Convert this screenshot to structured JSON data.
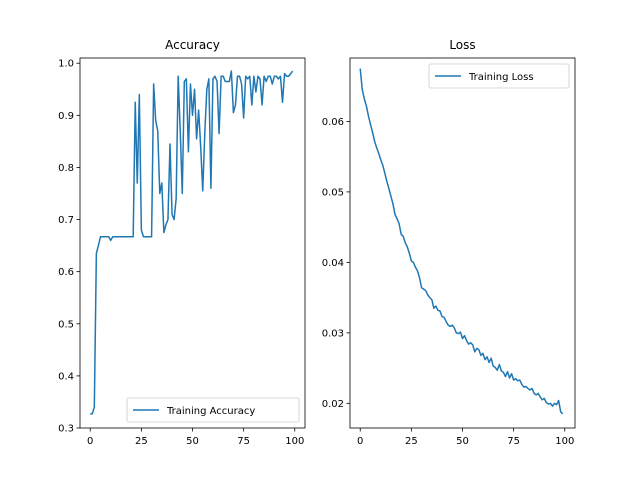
{
  "chart_data": [
    {
      "type": "line",
      "title": "Accuracy",
      "xlabel": "",
      "ylabel": "",
      "xlim": [
        -5,
        105
      ],
      "ylim": [
        0.3,
        1.01
      ],
      "xticks": [
        0,
        25,
        50,
        75,
        100
      ],
      "yticks": [
        0.3,
        0.4,
        0.5,
        0.6,
        0.7,
        0.8,
        0.9,
        1.0
      ],
      "ytick_labels": [
        "0.3",
        "0.4",
        "0.5",
        "0.6",
        "0.7",
        "0.8",
        "0.9",
        "1.0"
      ],
      "legend_position": "bottom-right",
      "grid": false,
      "series": [
        {
          "name": "Training Accuracy",
          "color": "#1f77b4",
          "x": [
            0,
            1,
            2,
            3,
            4,
            5,
            6,
            7,
            8,
            9,
            10,
            11,
            12,
            13,
            14,
            15,
            16,
            17,
            18,
            19,
            20,
            21,
            22,
            23,
            24,
            25,
            26,
            27,
            28,
            29,
            30,
            31,
            32,
            33,
            34,
            35,
            36,
            37,
            38,
            39,
            40,
            41,
            42,
            43,
            44,
            45,
            46,
            47,
            48,
            49,
            50,
            51,
            52,
            53,
            54,
            55,
            56,
            57,
            58,
            59,
            60,
            61,
            62,
            63,
            64,
            65,
            66,
            67,
            68,
            69,
            70,
            71,
            72,
            73,
            74,
            75,
            76,
            77,
            78,
            79,
            80,
            81,
            82,
            83,
            84,
            85,
            86,
            87,
            88,
            89,
            90,
            91,
            92,
            93,
            94,
            95,
            96,
            97,
            98,
            99
          ],
          "values": [
            0.327,
            0.327,
            0.34,
            0.635,
            0.65,
            0.667,
            0.667,
            0.667,
            0.667,
            0.667,
            0.66,
            0.667,
            0.667,
            0.667,
            0.667,
            0.667,
            0.667,
            0.667,
            0.667,
            0.667,
            0.667,
            0.667,
            0.925,
            0.77,
            0.94,
            0.68,
            0.667,
            0.667,
            0.667,
            0.667,
            0.667,
            0.96,
            0.89,
            0.87,
            0.75,
            0.77,
            0.675,
            0.69,
            0.7,
            0.845,
            0.71,
            0.7,
            0.74,
            0.975,
            0.87,
            0.75,
            0.965,
            0.97,
            0.83,
            0.96,
            0.9,
            0.95,
            0.855,
            0.91,
            0.84,
            0.755,
            0.865,
            0.95,
            0.97,
            0.76,
            0.97,
            0.975,
            0.965,
            0.865,
            0.975,
            0.975,
            0.965,
            0.965,
            0.965,
            0.985,
            0.905,
            0.92,
            0.975,
            0.975,
            0.96,
            0.895,
            0.975,
            0.97,
            0.975,
            0.92,
            0.975,
            0.945,
            0.975,
            0.97,
            0.92,
            0.975,
            0.965,
            0.975,
            0.975,
            0.96,
            0.975,
            0.975,
            0.97,
            0.975,
            0.925,
            0.98,
            0.975,
            0.975,
            0.98,
            0.985
          ]
        }
      ]
    },
    {
      "type": "line",
      "title": "Loss",
      "xlabel": "",
      "ylabel": "",
      "xlim": [
        -5,
        105
      ],
      "ylim": [
        0.0165,
        0.069
      ],
      "xticks": [
        0,
        25,
        50,
        75,
        100
      ],
      "yticks": [
        0.02,
        0.03,
        0.04,
        0.05,
        0.06
      ],
      "ytick_labels": [
        "0.02",
        "0.03",
        "0.04",
        "0.05",
        "0.06"
      ],
      "legend_position": "top-right",
      "grid": false,
      "series": [
        {
          "name": "Training Loss",
          "color": "#1f77b4",
          "x": [
            0,
            1,
            2,
            3,
            4,
            5,
            6,
            7,
            8,
            9,
            10,
            11,
            12,
            13,
            14,
            15,
            16,
            17,
            18,
            19,
            20,
            21,
            22,
            23,
            24,
            25,
            26,
            27,
            28,
            29,
            30,
            31,
            32,
            33,
            34,
            35,
            36,
            37,
            38,
            39,
            40,
            41,
            42,
            43,
            44,
            45,
            46,
            47,
            48,
            49,
            50,
            51,
            52,
            53,
            54,
            55,
            56,
            57,
            58,
            59,
            60,
            61,
            62,
            63,
            64,
            65,
            66,
            67,
            68,
            69,
            70,
            71,
            72,
            73,
            74,
            75,
            76,
            77,
            78,
            79,
            80,
            81,
            82,
            83,
            84,
            85,
            86,
            87,
            88,
            89,
            90,
            91,
            92,
            93,
            94,
            95,
            96,
            97,
            98,
            99
          ],
          "values": [
            0.0675,
            0.0645,
            0.0632,
            0.0622,
            0.0608,
            0.0596,
            0.0585,
            0.0572,
            0.0563,
            0.0555,
            0.0546,
            0.0538,
            0.0527,
            0.0515,
            0.0505,
            0.0494,
            0.0483,
            0.0468,
            0.0462,
            0.0455,
            0.044,
            0.0437,
            0.0428,
            0.0422,
            0.0413,
            0.0402,
            0.04,
            0.0393,
            0.0388,
            0.0378,
            0.0364,
            0.0362,
            0.036,
            0.0354,
            0.035,
            0.0347,
            0.0335,
            0.0338,
            0.0332,
            0.0331,
            0.0323,
            0.0322,
            0.0316,
            0.0311,
            0.0309,
            0.0311,
            0.0307,
            0.03,
            0.0299,
            0.0301,
            0.0292,
            0.0296,
            0.0289,
            0.0284,
            0.0286,
            0.0283,
            0.0273,
            0.0278,
            0.0276,
            0.0268,
            0.0271,
            0.0262,
            0.0266,
            0.0258,
            0.0264,
            0.0253,
            0.0251,
            0.0247,
            0.0255,
            0.0246,
            0.0244,
            0.0238,
            0.0245,
            0.0236,
            0.0242,
            0.0233,
            0.0235,
            0.0232,
            0.0233,
            0.0227,
            0.0223,
            0.0224,
            0.0221,
            0.0219,
            0.0221,
            0.0214,
            0.0212,
            0.0214,
            0.0209,
            0.0205,
            0.0207,
            0.0201,
            0.0199,
            0.02,
            0.0196,
            0.02,
            0.0198,
            0.0204,
            0.0188,
            0.0185
          ]
        }
      ]
    }
  ]
}
